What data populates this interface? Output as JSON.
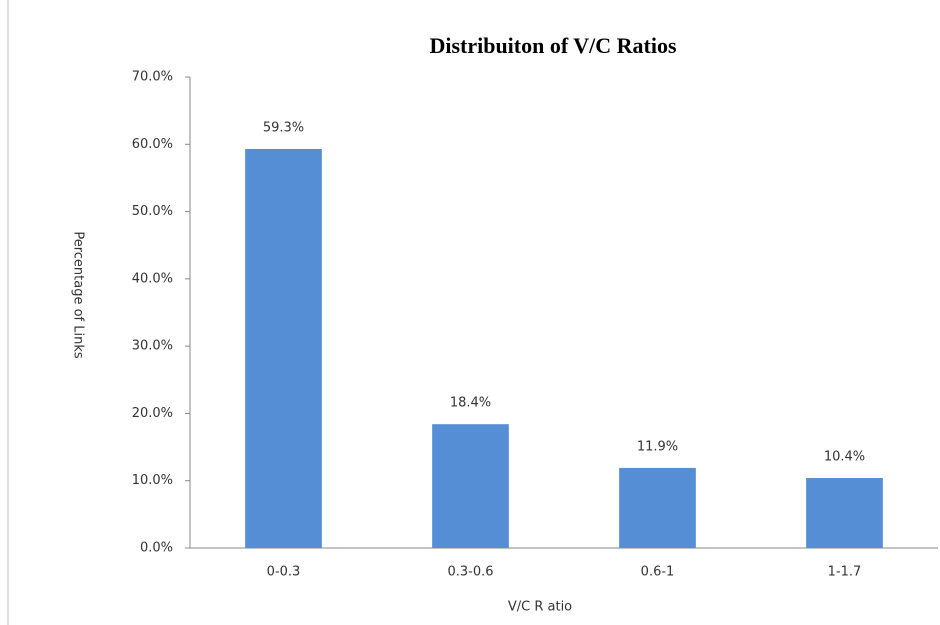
{
  "chart_data": {
    "type": "bar",
    "title": "Distribuiton of V/C Ratios",
    "x_label": "V/C  R atio",
    "y_label": "Percentage  of  Links",
    "categories": [
      "0-0.3",
      "0.3-0.6",
      "0.6-1",
      "1-1.7"
    ],
    "values": [
      59.3,
      18.4,
      11.9,
      10.4
    ],
    "value_labels": [
      "59.3%",
      "18.4%",
      "11.9%",
      "10.4%"
    ],
    "color": "#558ed5",
    "ylim": [
      0,
      70
    ],
    "yticks": [
      {
        "value": 0,
        "label": "0.0%"
      },
      {
        "value": 10,
        "label": "10.0%"
      },
      {
        "value": 20,
        "label": "20.0%"
      },
      {
        "value": 30,
        "label": "30.0%"
      },
      {
        "value": 40,
        "label": "40.0%"
      },
      {
        "value": 50,
        "label": "50.0%"
      },
      {
        "value": 60,
        "label": "60.0%"
      },
      {
        "value": 70,
        "label": "70.0%"
      }
    ],
    "grid": false
  }
}
